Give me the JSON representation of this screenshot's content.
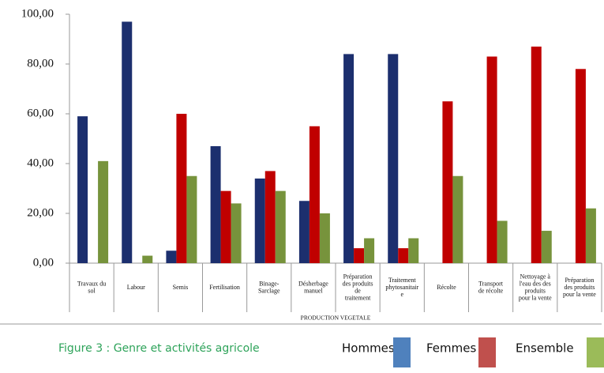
{
  "chart_data": {
    "type": "bar",
    "caption": "Figure 3 : Genre et activités agricole",
    "x_label": "PRODUCTION VEGETALE",
    "categories": [
      "Travaux du\nsol",
      "Labour",
      "Semis",
      "Fertilisation",
      "Binage-\nSarclage",
      "Désherbage\nmanuel",
      "Préparation\ndes produits\nde\ntraitement",
      "Traitement\nphytosanitair\ne",
      "Récolte",
      "Transport\nde récolte",
      "Nettoyage à\nl'eau des des\nproduits\npour la vente",
      "Préparation\ndes produits\npour la vente"
    ],
    "series": [
      {
        "name": "Hommes",
        "color": "#1c2f6e",
        "legend_color": "#4f81bd",
        "values": [
          59,
          97,
          5,
          47,
          34,
          25,
          84,
          84,
          null,
          null,
          null,
          null
        ]
      },
      {
        "name": "Femmes",
        "color": "#c00000",
        "legend_color": "#c0504d",
        "values": [
          null,
          null,
          60,
          29,
          37,
          55,
          6,
          6,
          65,
          83,
          87,
          78
        ]
      },
      {
        "name": "Ensemble",
        "color": "#77933c",
        "legend_color": "#9bbb59",
        "values": [
          41,
          3,
          35,
          24,
          29,
          20,
          10,
          10,
          35,
          17,
          13,
          22
        ]
      }
    ],
    "ylim": [
      0,
      100
    ],
    "yticks": [
      {
        "value": 0,
        "label": "0,00"
      },
      {
        "value": 20,
        "label": "20,00"
      },
      {
        "value": 40,
        "label": "40,00"
      },
      {
        "value": 60,
        "label": "60,00"
      },
      {
        "value": 80,
        "label": "80,00"
      },
      {
        "value": 100,
        "label": "100,00"
      }
    ],
    "grid": false
  }
}
